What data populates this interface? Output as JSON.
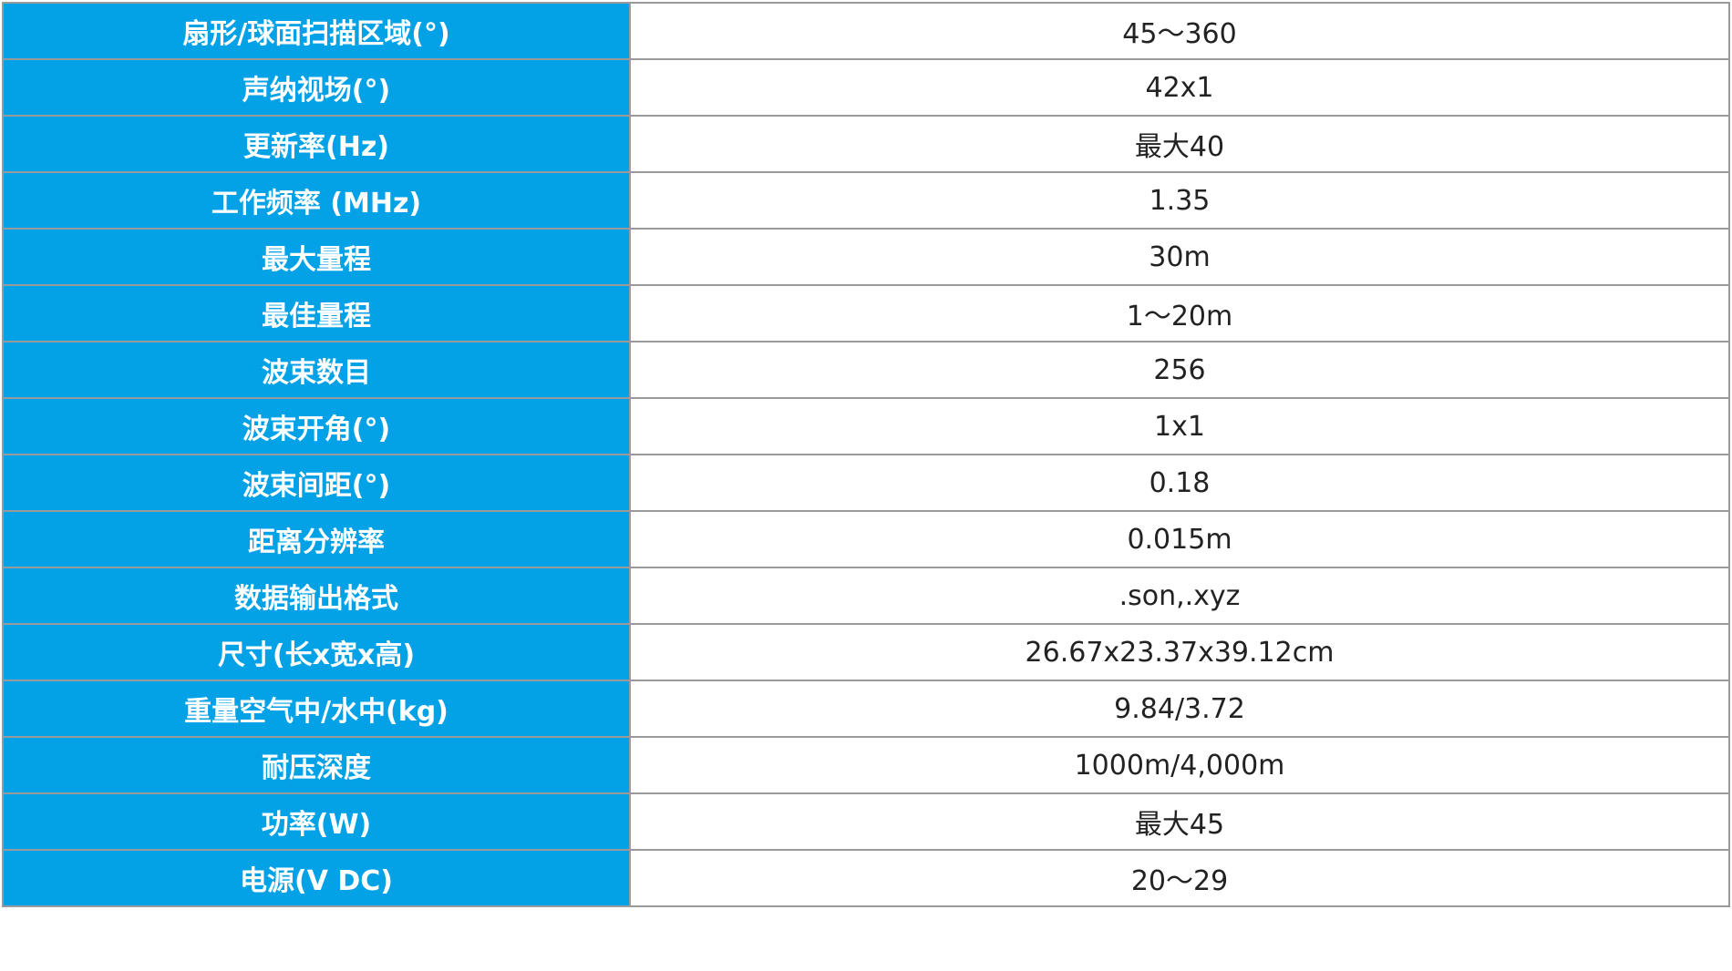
{
  "colors": {
    "header_bg": "#03a1e6",
    "border": "#9a9a9a"
  },
  "specs": [
    {
      "label": "扇形/球面扫描区域(°)",
      "value": "45～360"
    },
    {
      "label": "声纳视场(°)",
      "value": "42x1"
    },
    {
      "label": "更新率(Hz)",
      "value": "最大40"
    },
    {
      "label": "工作频率 (MHz)",
      "value": "1.35"
    },
    {
      "label": "最大量程",
      "value": "30m"
    },
    {
      "label": "最佳量程",
      "value": "1～20m"
    },
    {
      "label": "波束数目",
      "value": "256"
    },
    {
      "label": "波束开角(°)",
      "value": "1x1"
    },
    {
      "label": "波束间距(°)",
      "value": "0.18"
    },
    {
      "label": "距离分辨率",
      "value": "0.015m"
    },
    {
      "label": "数据输出格式",
      "value": ".son,.xyz"
    },
    {
      "label": "尺寸(长x宽x高)",
      "value": "26.67x23.37x39.12cm"
    },
    {
      "label": "重量空气中/水中(kg)",
      "value": "9.84/3.72"
    },
    {
      "label": "耐压深度",
      "value": "1000m/4,000m"
    },
    {
      "label": "功率(W)",
      "value": "最大45"
    },
    {
      "label": "电源(V DC)",
      "value": "20～29"
    }
  ]
}
